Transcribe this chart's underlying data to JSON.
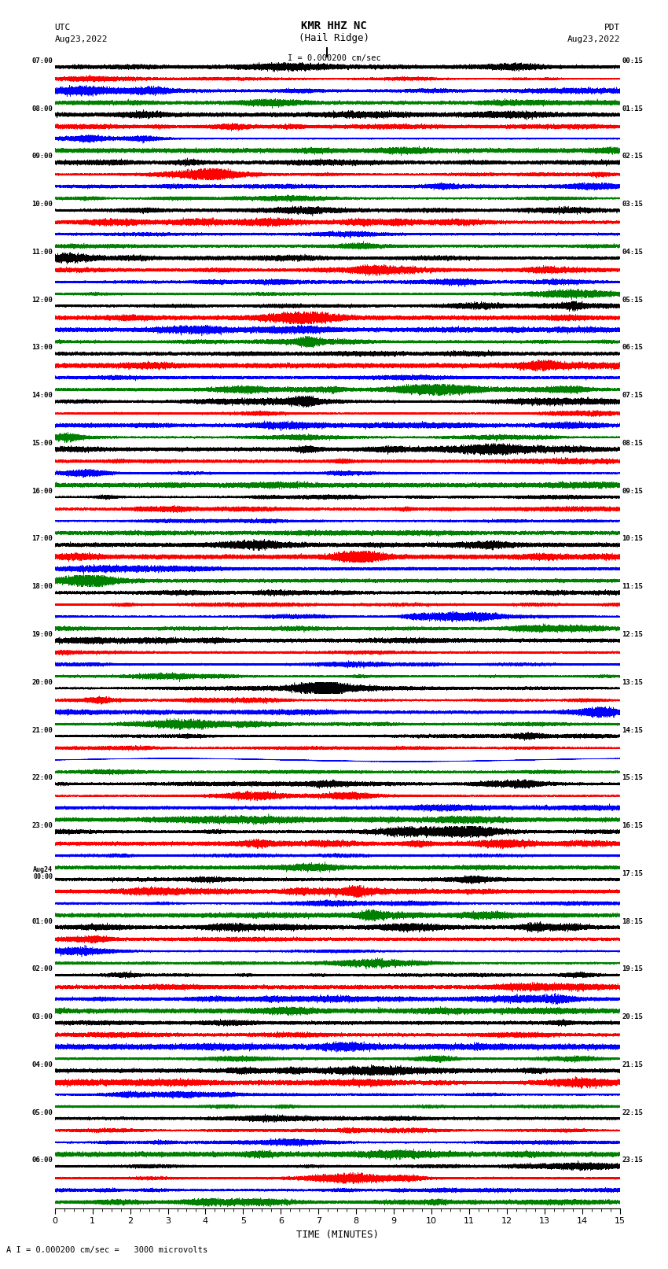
{
  "title_line1": "KMR HHZ NC",
  "title_line2": "(Hail Ridge)",
  "scale_label": "I = 0.000200 cm/sec",
  "bottom_label": "A I = 0.000200 cm/sec =   3000 microvolts",
  "xlabel": "TIME (MINUTES)",
  "utc_label": "UTC",
  "utc_date": "Aug23,2022",
  "pdt_label": "PDT",
  "pdt_date": "Aug23,2022",
  "left_times": [
    "07:00",
    "08:00",
    "09:00",
    "10:00",
    "11:00",
    "12:00",
    "13:00",
    "14:00",
    "15:00",
    "16:00",
    "17:00",
    "18:00",
    "19:00",
    "20:00",
    "21:00",
    "22:00",
    "23:00",
    "Aug24\n00:00",
    "01:00",
    "02:00",
    "03:00",
    "04:00",
    "05:00",
    "06:00"
  ],
  "right_times": [
    "00:15",
    "01:15",
    "02:15",
    "03:15",
    "04:15",
    "05:15",
    "06:15",
    "07:15",
    "08:15",
    "09:15",
    "10:15",
    "11:15",
    "12:15",
    "13:15",
    "14:15",
    "15:15",
    "16:15",
    "17:15",
    "18:15",
    "19:15",
    "20:15",
    "21:15",
    "22:15",
    "23:15"
  ],
  "n_rows": 24,
  "traces_per_row": 4,
  "colors": [
    "black",
    "red",
    "blue",
    "green"
  ],
  "bg_color": "white",
  "fig_width": 8.5,
  "fig_height": 16.13,
  "minutes_per_trace": 15,
  "sample_rate": 50,
  "xmin": 0,
  "xmax": 15
}
